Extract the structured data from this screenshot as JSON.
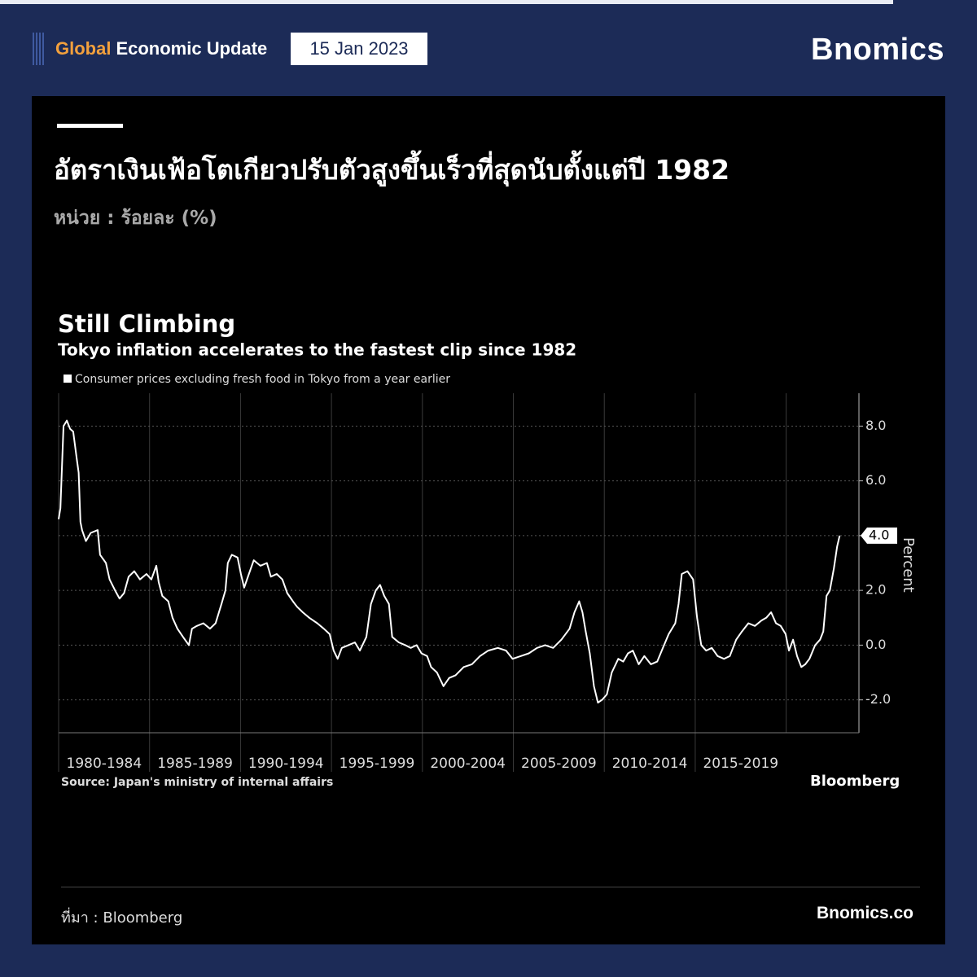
{
  "header": {
    "brand_highlight": "Global",
    "brand": "Economic Update",
    "date": "15 Jan 2023",
    "logo": "Bnomics"
  },
  "title": "อัตราเงินเฟ้อโตเกียวปรับตัวสูงขึ้นเร็วที่สุดนับตั้งแต่ปี 1982",
  "subtitle": "หน่วย : ร้อยละ (%)",
  "chart_data": {
    "type": "line",
    "title": "Still Climbing",
    "subtitle": "Tokyo inflation accelerates to the fastest clip since 1982",
    "y_axis_label": "Percent",
    "source": "Source: Japan's ministry of internal affairs",
    "logo": "Bloomberg",
    "grid": true,
    "y_axis_side": "right",
    "x": [
      1980.0,
      1980.1,
      1980.27,
      1980.45,
      1980.63,
      1980.8,
      1981.0,
      1981.1,
      1981.2,
      1981.29,
      1981.5,
      1981.77,
      1982.15,
      1982.28,
      1982.6,
      1982.8,
      1983.1,
      1983.35,
      1983.6,
      1983.85,
      1984.16,
      1984.47,
      1984.83,
      1985.1,
      1985.37,
      1985.5,
      1985.7,
      1986.03,
      1986.26,
      1986.53,
      1986.84,
      1987.16,
      1987.33,
      1987.6,
      1987.96,
      1988.32,
      1988.63,
      1988.95,
      1989.17,
      1989.3,
      1989.52,
      1989.84,
      1990.02,
      1990.2,
      1990.46,
      1990.73,
      1991.09,
      1991.45,
      1991.67,
      1991.99,
      1992.3,
      1992.57,
      1992.88,
      1993.11,
      1993.42,
      1993.78,
      1994.22,
      1994.58,
      1994.9,
      1995.12,
      1995.34,
      1995.57,
      1995.93,
      1996.29,
      1996.56,
      1996.92,
      1997.17,
      1997.44,
      1997.67,
      1997.9,
      1998.16,
      1998.34,
      1998.7,
      1999.06,
      1999.36,
      1999.68,
      1999.95,
      2000.26,
      2000.48,
      2000.8,
      2001.16,
      2001.47,
      2001.82,
      2002.27,
      2002.72,
      2003.17,
      2003.62,
      2004.15,
      2004.6,
      2004.96,
      2005.41,
      2005.85,
      2006.3,
      2006.75,
      2007.19,
      2007.64,
      2008.09,
      2008.36,
      2008.62,
      2008.8,
      2008.98,
      2009.2,
      2009.43,
      2009.65,
      2009.88,
      2010.14,
      2010.41,
      2010.77,
      2011.04,
      2011.3,
      2011.57,
      2011.89,
      2012.2,
      2012.56,
      2012.91,
      2013.22,
      2013.54,
      2013.9,
      2014.08,
      2014.26,
      2014.57,
      2014.88,
      2015.1,
      2015.33,
      2015.6,
      2015.91,
      2016.23,
      2016.58,
      2016.9,
      2017.25,
      2017.57,
      2017.92,
      2018.28,
      2018.64,
      2018.9,
      2019.17,
      2019.44,
      2019.7,
      2019.97,
      2020.15,
      2020.38,
      2020.6,
      2020.83,
      2021.05,
      2021.28,
      2021.59,
      2021.86,
      2022.04,
      2022.22,
      2022.4,
      2022.62,
      2022.8,
      2022.94
    ],
    "series": [
      {
        "name": "Consumer prices excluding fresh food in Tokyo from a year earlier",
        "color": "#ffffff",
        "values": [
          4.6,
          5.0,
          8.0,
          8.2,
          7.9,
          7.8,
          6.8,
          6.3,
          4.5,
          4.2,
          3.8,
          4.1,
          4.2,
          3.3,
          3.0,
          2.4,
          2.0,
          1.7,
          1.9,
          2.5,
          2.7,
          2.4,
          2.6,
          2.4,
          2.9,
          2.3,
          1.8,
          1.6,
          1.0,
          0.6,
          0.3,
          0.0,
          0.6,
          0.7,
          0.8,
          0.6,
          0.8,
          1.5,
          2.0,
          3.0,
          3.3,
          3.2,
          2.6,
          2.1,
          2.6,
          3.1,
          2.9,
          3.0,
          2.5,
          2.6,
          2.4,
          1.9,
          1.6,
          1.4,
          1.2,
          1.0,
          0.8,
          0.6,
          0.4,
          -0.2,
          -0.5,
          -0.1,
          0.0,
          0.1,
          -0.2,
          0.3,
          1.5,
          2.0,
          2.2,
          1.8,
          1.5,
          0.3,
          0.1,
          0.0,
          -0.1,
          0.0,
          -0.3,
          -0.4,
          -0.8,
          -1.0,
          -1.5,
          -1.2,
          -1.1,
          -0.8,
          -0.7,
          -0.4,
          -0.2,
          -0.1,
          -0.2,
          -0.5,
          -0.4,
          -0.3,
          -0.1,
          0.0,
          -0.1,
          0.2,
          0.6,
          1.2,
          1.6,
          1.2,
          0.5,
          -0.3,
          -1.5,
          -2.1,
          -2.0,
          -1.8,
          -1.0,
          -0.5,
          -0.6,
          -0.3,
          -0.2,
          -0.7,
          -0.4,
          -0.7,
          -0.6,
          -0.1,
          0.4,
          0.8,
          1.5,
          2.6,
          2.7,
          2.4,
          1.0,
          0.0,
          -0.2,
          -0.1,
          -0.4,
          -0.5,
          -0.4,
          0.2,
          0.5,
          0.8,
          0.7,
          0.9,
          1.0,
          1.2,
          0.8,
          0.7,
          0.4,
          -0.2,
          0.2,
          -0.4,
          -0.8,
          -0.7,
          -0.5,
          0.0,
          0.2,
          0.5,
          1.8,
          2.0,
          2.8,
          3.6,
          4.0
        ]
      }
    ],
    "xlim": [
      1980,
      2024
    ],
    "xticks": [
      {
        "value": 1980,
        "label": "1980-1984"
      },
      {
        "value": 1985,
        "label": "1985-1989"
      },
      {
        "value": 1990,
        "label": "1990-1994"
      },
      {
        "value": 1995,
        "label": "1995-1999"
      },
      {
        "value": 2000,
        "label": "2000-2004"
      },
      {
        "value": 2005,
        "label": "2005-2009"
      },
      {
        "value": 2010,
        "label": "2010-2014"
      },
      {
        "value": 2015,
        "label": "2015-2019"
      }
    ],
    "ylim": [
      -3.2,
      9.2
    ],
    "yticks": [
      {
        "value": -2,
        "label": "-2.0"
      },
      {
        "value": 0,
        "label": "0.0"
      },
      {
        "value": 2,
        "label": "2.0"
      },
      {
        "value": 6,
        "label": "6.0"
      },
      {
        "value": 8,
        "label": "8.0"
      }
    ],
    "y_callout": {
      "value": 4.0,
      "label": "4.0"
    }
  },
  "footer": {
    "source": "ที่มา : Bloomberg",
    "site": "Bnomics.co"
  }
}
